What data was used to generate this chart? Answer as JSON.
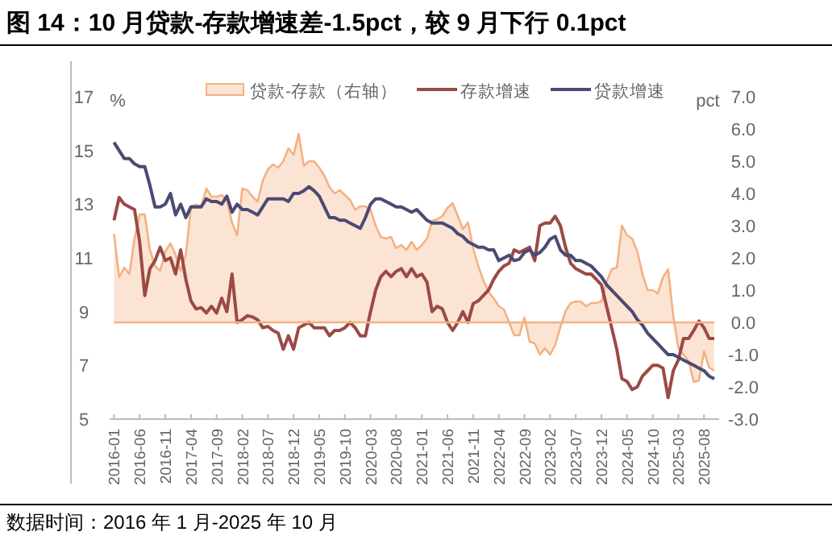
{
  "chart_data": {
    "type": "line",
    "title": "图 14：10 月贷款-存款增速差-1.5pct，较 9 月下行 0.1pct",
    "ylabel": "%",
    "y2label": "pct",
    "annotations": [
      "数据时间：2016 年 1 月-2025 年 10 月"
    ],
    "categories": [
      "2016-01",
      null,
      null,
      null,
      null,
      "2016-06",
      null,
      null,
      null,
      null,
      "2016-11",
      null,
      null,
      null,
      null,
      "2017-04",
      null,
      null,
      null,
      null,
      "2017-09",
      null,
      null,
      null,
      null,
      "2018-02",
      null,
      null,
      null,
      null,
      "2018-07",
      null,
      null,
      null,
      null,
      "2018-12",
      null,
      null,
      null,
      null,
      "2019-05",
      null,
      null,
      null,
      null,
      "2019-10",
      null,
      null,
      null,
      null,
      "2020-03",
      null,
      null,
      null,
      null,
      "2020-08",
      null,
      null,
      null,
      null,
      "2021-01",
      null,
      null,
      null,
      null,
      "2021-06",
      null,
      null,
      null,
      null,
      "2021-11",
      null,
      null,
      null,
      null,
      "2022-04",
      null,
      null,
      null,
      null,
      "2022-09",
      null,
      null,
      null,
      null,
      "2023-02",
      null,
      null,
      null,
      null,
      "2023-07",
      null,
      null,
      null,
      null,
      "2023-12",
      null,
      null,
      null,
      null,
      "2024-05",
      null,
      null,
      null,
      null,
      "2024-10",
      null,
      null,
      null,
      null,
      "2025-03",
      null,
      null,
      null,
      null,
      "2025-08",
      null,
      null
    ],
    "series": [
      {
        "name": "贷款-存款（右轴）",
        "type": "area",
        "axis": "y2",
        "color": "#f4b183",
        "values": [
          2.75,
          1.4,
          1.7,
          1.5,
          2.6,
          3.35,
          3.35,
          2.25,
          1.75,
          1.6,
          2.2,
          2.45,
          2.1,
          1.6,
          2.1,
          3.6,
          3.65,
          3.6,
          4.15,
          3.9,
          3.9,
          3.95,
          3.8,
          3.1,
          2.7,
          4.15,
          4.1,
          3.9,
          3.75,
          4.4,
          4.75,
          4.9,
          4.8,
          5.0,
          5.4,
          5.2,
          5.85,
          4.85,
          5.0,
          5.0,
          4.8,
          4.55,
          4.2,
          4.0,
          4.1,
          3.95,
          3.8,
          3.5,
          3.6,
          3.6,
          3.5,
          3.0,
          2.65,
          2.6,
          2.65,
          2.3,
          2.4,
          2.25,
          2.5,
          2.25,
          2.4,
          2.6,
          3.15,
          3.2,
          3.3,
          3.55,
          3.7,
          3.3,
          2.9,
          3.1,
          2.3,
          1.75,
          1.3,
          0.95,
          0.75,
          0.5,
          0.4,
          0,
          -0.4,
          -0.4,
          0.15,
          -0.6,
          -0.65,
          -1.0,
          -0.8,
          -1.0,
          -0.7,
          -0.15,
          0.35,
          0.6,
          0.65,
          0.65,
          0.5,
          0.6,
          0.6,
          0.65,
          1.25,
          1.65,
          1.7,
          3.0,
          2.7,
          2.6,
          2.2,
          1.5,
          1.0,
          1.0,
          0.9,
          1.4,
          1.65,
          0.2,
          -0.8,
          -1.0,
          -1.2,
          -1.85,
          -1.8,
          -0.9,
          -1.4,
          -1.5
        ]
      },
      {
        "name": "存款增速",
        "type": "line",
        "color": "#9b4a44",
        "values": [
          12.4,
          13.25,
          13.0,
          12.9,
          12.8,
          11.6,
          9.6,
          10.6,
          10.9,
          11.4,
          10.9,
          11.0,
          10.4,
          11.3,
          10.2,
          9.4,
          9.1,
          9.15,
          8.95,
          9.2,
          8.95,
          9.5,
          9.0,
          10.4,
          8.6,
          8.7,
          8.85,
          8.8,
          8.7,
          8.4,
          8.45,
          8.3,
          8.2,
          7.6,
          8.1,
          7.6,
          8.4,
          8.5,
          8.6,
          8.4,
          8.4,
          8.4,
          8.1,
          8.3,
          8.3,
          8.4,
          8.6,
          8.4,
          8.1,
          8.1,
          9.0,
          9.8,
          10.3,
          10.5,
          10.3,
          10.5,
          10.6,
          10.3,
          10.6,
          10.3,
          10.4,
          10.1,
          9.0,
          9.2,
          9.1,
          8.6,
          8.3,
          8.6,
          9.0,
          8.6,
          9.3,
          9.4,
          9.6,
          9.8,
          10.2,
          10.5,
          10.7,
          10.8,
          11.3,
          11.2,
          11.3,
          11.4,
          10.9,
          12.2,
          12.3,
          12.3,
          12.55,
          12.2,
          11.4,
          10.8,
          10.6,
          10.5,
          10.4,
          10.4,
          10.2,
          10.0,
          9.2,
          8.4,
          7.6,
          6.5,
          6.4,
          6.1,
          6.2,
          6.6,
          6.8,
          7.0,
          7.0,
          6.9,
          5.8,
          6.8,
          7.2,
          8.0,
          8.0,
          8.3,
          8.65,
          8.4,
          8.0,
          8.0
        ]
      },
      {
        "name": "贷款增速",
        "type": "line",
        "color": "#4a4a72",
        "values": [
          15.3,
          15.0,
          14.7,
          14.7,
          14.5,
          14.4,
          14.4,
          13.7,
          12.9,
          12.9,
          13.0,
          13.4,
          12.6,
          13.0,
          12.5,
          12.9,
          12.9,
          12.9,
          13.2,
          13.1,
          13.1,
          13.0,
          13.3,
          12.7,
          13.0,
          12.8,
          12.8,
          12.7,
          12.6,
          12.9,
          13.2,
          13.2,
          13.2,
          13.2,
          13.1,
          13.4,
          13.4,
          13.5,
          13.65,
          13.5,
          13.3,
          12.9,
          12.5,
          12.5,
          12.4,
          12.4,
          12.3,
          12.2,
          12.1,
          12.5,
          13.0,
          13.2,
          13.2,
          13.1,
          13.0,
          12.9,
          12.9,
          12.8,
          12.7,
          12.8,
          12.6,
          12.4,
          12.3,
          12.3,
          12.3,
          12.2,
          12.1,
          11.9,
          11.8,
          11.6,
          11.5,
          11.4,
          11.4,
          11.3,
          11.3,
          10.9,
          11.0,
          11.1,
          10.9,
          10.95,
          11.2,
          11.3,
          11.1,
          11.2,
          11.4,
          11.7,
          11.8,
          11.3,
          11.1,
          11.1,
          10.9,
          10.9,
          10.8,
          10.7,
          10.5,
          10.3,
          10.0,
          9.8,
          9.6,
          9.4,
          9.2,
          9.0,
          8.7,
          8.5,
          8.2,
          8.0,
          7.8,
          7.6,
          7.4,
          7.4,
          7.3,
          7.2,
          7.1,
          7.0,
          6.9,
          6.8,
          6.6,
          6.5
        ]
      }
    ],
    "ylim": [
      5,
      17
    ],
    "yticks": [
      5,
      7,
      9,
      11,
      13,
      15,
      17
    ],
    "y2lim": [
      -3,
      7
    ],
    "y2ticks": [
      {
        "value": -3,
        "label": "-3.0"
      },
      {
        "value": -2,
        "label": "-2.0"
      },
      {
        "value": -1,
        "label": "-1.0"
      },
      {
        "value": 0,
        "label": "0.0"
      },
      {
        "value": 1,
        "label": "1.0"
      },
      {
        "value": 2,
        "label": "2.0"
      },
      {
        "value": 3,
        "label": "3.0"
      },
      {
        "value": 4,
        "label": "4.0"
      },
      {
        "value": 5,
        "label": "5.0"
      },
      {
        "value": 6,
        "label": "6.0"
      },
      {
        "value": 7,
        "label": "7.0"
      }
    ],
    "ref_lines": [
      {
        "axis": "y2",
        "value": 0,
        "color": "#f4b183"
      }
    ],
    "legend": "top"
  }
}
